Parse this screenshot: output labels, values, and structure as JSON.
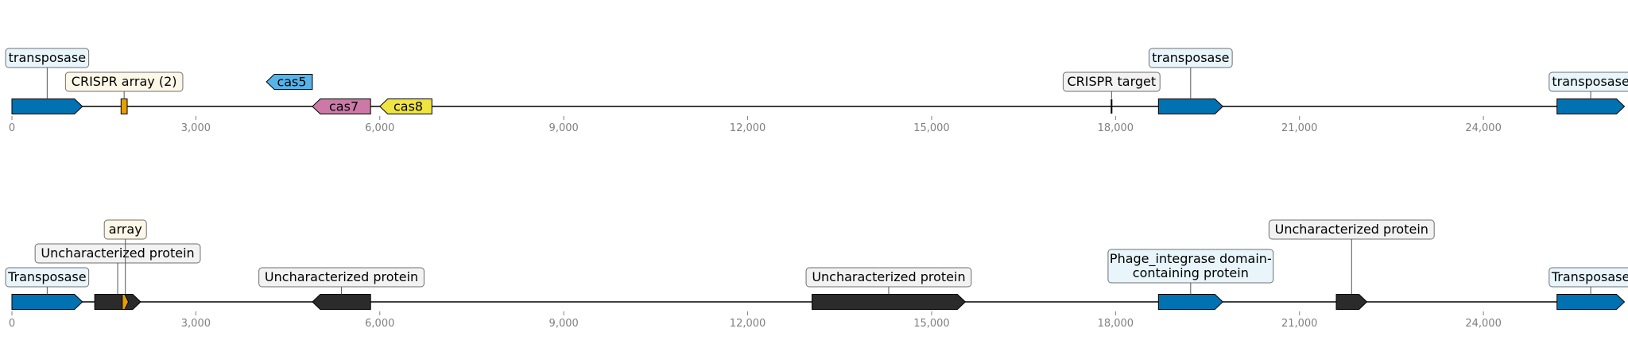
{
  "tracks": [
    {
      "axis_ticks": [
        "0",
        "3,000",
        "6,000",
        "9,000",
        "12,000",
        "15,000",
        "18,000",
        "21,000",
        "24,000"
      ],
      "features": [
        {
          "start": 0,
          "end": 1150,
          "strand": 1,
          "color": "#0072b2",
          "label": "transposase",
          "label_bg": "#e8f6fc"
        },
        {
          "start": 1780,
          "end": 1880,
          "strand": 0,
          "color": "#e69f00",
          "label": "CRISPR array (2)",
          "label_bg": "#fdf7e8"
        },
        {
          "start": 4150,
          "end": 4900,
          "strand": -1,
          "color": "#56b4e9",
          "label": "cas5",
          "label_inside": true
        },
        {
          "start": 4900,
          "end": 5850,
          "strand": -1,
          "color": "#cc79a7",
          "label": "cas7",
          "label_inside": true
        },
        {
          "start": 6000,
          "end": 6850,
          "strand": -1,
          "color": "#f0e442",
          "label": "cas8",
          "label_inside": true
        },
        {
          "start": 17920,
          "end": 17950,
          "strand": 1,
          "color": "#000000",
          "label": "CRISPR target",
          "label_bg": "#f2f2f2"
        },
        {
          "start": 18700,
          "end": 19750,
          "strand": 1,
          "color": "#0072b2",
          "label": "transposase",
          "label_bg": "#e8f6fc"
        },
        {
          "start": 25200,
          "end": 26300,
          "strand": 1,
          "color": "#0072b2",
          "label": "transposase",
          "label_bg": "#e8f6fc"
        }
      ]
    },
    {
      "axis_ticks": [
        "0",
        "3,000",
        "6,000",
        "9,000",
        "12,000",
        "15,000",
        "18,000",
        "21,000",
        "24,000"
      ],
      "features": [
        {
          "start": 0,
          "end": 1150,
          "strand": 1,
          "color": "#0072b2",
          "label": "Transposase",
          "label_bg": "#e8f6fc"
        },
        {
          "start": 1350,
          "end": 2100,
          "strand": 1,
          "color": "#2b2b2b",
          "label": "Uncharacterized protein",
          "label_bg": "#f2f2f2"
        },
        {
          "start": 1800,
          "end": 1900,
          "strand": 1,
          "color": "#e69f00",
          "label": "array",
          "label_bg": "#fdf7e8"
        },
        {
          "start": 4900,
          "end": 5850,
          "strand": -1,
          "color": "#2b2b2b",
          "label": "Uncharacterized protein",
          "label_bg": "#f2f2f2"
        },
        {
          "start": 13050,
          "end": 15550,
          "strand": 1,
          "color": "#2b2b2b",
          "label": "Uncharacterized protein",
          "label_bg": "#f2f2f2"
        },
        {
          "start": 18700,
          "end": 19750,
          "strand": 1,
          "color": "#0072b2",
          "label": "Phage_integrase domain-\ncontaining protein",
          "label_bg": "#e8f6fc"
        },
        {
          "start": 21600,
          "end": 22100,
          "strand": 1,
          "color": "#2b2b2b",
          "label": "Uncharacterized protein",
          "label_bg": "#f2f2f2"
        },
        {
          "start": 25200,
          "end": 26300,
          "strand": 1,
          "color": "#0072b2",
          "label": "Transposase",
          "label_bg": "#e8f6fc"
        }
      ]
    }
  ]
}
